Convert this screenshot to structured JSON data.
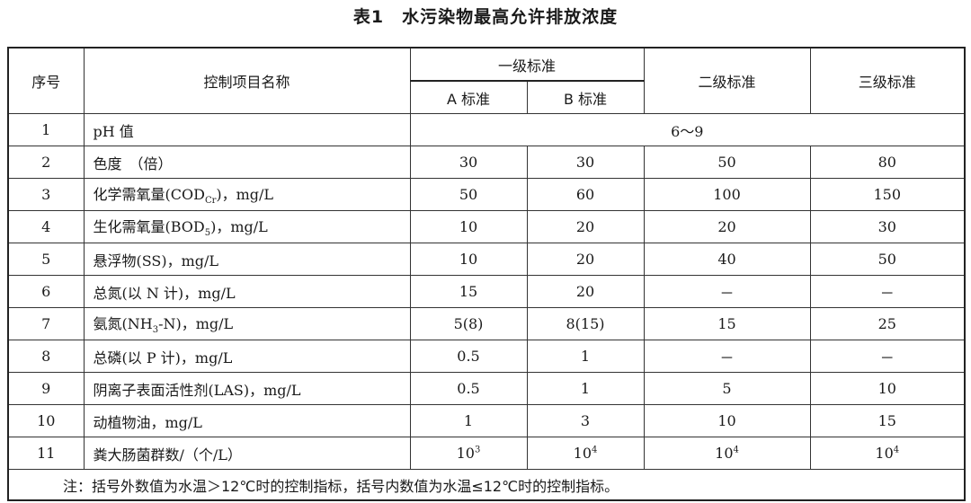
{
  "title": "表1　水污染物最高允许排放浓度",
  "headers": {
    "seq": "序号",
    "name": "控制项目名称",
    "level1": "一级标准",
    "a": "A 标准",
    "b": "B 标准",
    "level2": "二级标准",
    "level3": "三级标准"
  },
  "rows": [
    {
      "seq": "1",
      "name": "pH 值",
      "merged": "6～9"
    },
    {
      "seq": "2",
      "name": "色度　（倍）",
      "a": "30",
      "b": "30",
      "l2": "50",
      "l3": "80"
    },
    {
      "seq": "3",
      "name_pre": "化学需氧量(COD",
      "name_sub": "Cr",
      "name_post": ")，mg/L",
      "a": "50",
      "b": "60",
      "l2": "100",
      "l3": "150"
    },
    {
      "seq": "4",
      "name_pre": "生化需氧量(BOD",
      "name_sub": "5",
      "name_post": ")，mg/L",
      "a": "10",
      "b": "20",
      "l2": "20",
      "l3": "30"
    },
    {
      "seq": "5",
      "name": "悬浮物(SS)，mg/L",
      "a": "10",
      "b": "20",
      "l2": "40",
      "l3": "50"
    },
    {
      "seq": "6",
      "name": "总氮(以 N 计)，mg/L",
      "a": "15",
      "b": "20",
      "l2": "－",
      "l3": "－"
    },
    {
      "seq": "7",
      "name_pre": "氨氮(NH",
      "name_sub": "3",
      "name_post": "-N)，mg/L",
      "a": "5(8)",
      "b": "8(15)",
      "l2": "15",
      "l3": "25"
    },
    {
      "seq": "8",
      "name": "总磷(以 P 计)，mg/L",
      "a": "0.5",
      "b": "1",
      "l2": "－",
      "l3": "－"
    },
    {
      "seq": "9",
      "name": "阴离子表面活性剂(LAS)，mg/L",
      "a": "0.5",
      "b": "1",
      "l2": "5",
      "l3": "10"
    },
    {
      "seq": "10",
      "name": "动植物油，mg/L",
      "a": "1",
      "b": "3",
      "l2": "10",
      "l3": "15"
    },
    {
      "seq": "11",
      "name": "粪大肠菌群数/（个/L）",
      "a_base": "10",
      "a_exp": "3",
      "b_base": "10",
      "b_exp": "4",
      "l2_base": "10",
      "l2_exp": "4",
      "l3_base": "10",
      "l3_exp": "4"
    }
  ],
  "note": "注：括号外数值为水温＞12℃时的控制指标，括号内数值为水温≤12℃时的控制指标。"
}
